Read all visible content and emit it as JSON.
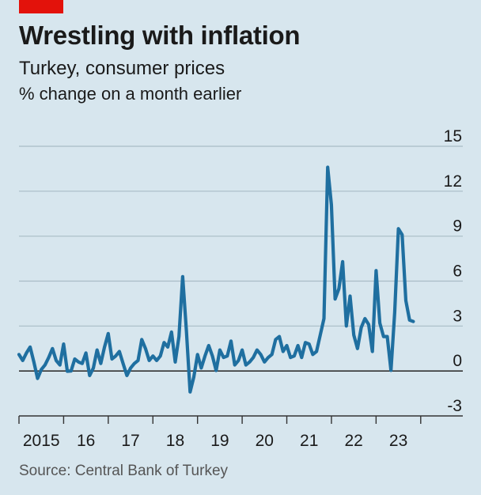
{
  "header": {
    "title": "Wrestling with inflation",
    "subtitle": "Turkey, consumer prices",
    "unit": "% change on a month earlier"
  },
  "footer": {
    "source": "Source: Central Bank of Turkey"
  },
  "colors": {
    "background": "#d7e6ee",
    "line": "#1f6fa0",
    "accent": "#e3120b",
    "grid": "#a9bcc6"
  },
  "chart_data": {
    "type": "line",
    "title": "Wrestling with inflation",
    "subtitle": "Turkey, consumer prices",
    "ylabel": "% change on a month earlier",
    "ylim": [
      -3,
      15
    ],
    "y_ticks": [
      15,
      12,
      9,
      6,
      3,
      0,
      -3
    ],
    "y_tick_labels": [
      "15",
      "12",
      "9",
      "6",
      "3",
      "0",
      "-3"
    ],
    "x_tick_labels": [
      "2015",
      "16",
      "17",
      "18",
      "19",
      "20",
      "21",
      "22",
      "23"
    ],
    "x_tick_years": [
      2015,
      2016,
      2017,
      2018,
      2019,
      2020,
      2021,
      2022,
      2023
    ],
    "x_start": "2015-01",
    "x_range_years": [
      2015,
      2024.5
    ],
    "grid": true,
    "series": [
      {
        "values": [
          1.1,
          0.7,
          1.2,
          1.6,
          0.6,
          -0.5,
          0.1,
          0.4,
          0.9,
          1.5,
          0.7,
          0.4,
          1.8,
          -0.02,
          0.0,
          0.8,
          0.6,
          0.5,
          1.2,
          -0.3,
          0.2,
          1.4,
          0.5,
          1.6,
          2.5,
          0.8,
          1.0,
          1.3,
          0.5,
          -0.3,
          0.2,
          0.5,
          0.7,
          2.1,
          1.5,
          0.7,
          1.0,
          0.7,
          1.0,
          1.9,
          1.6,
          2.6,
          0.6,
          2.3,
          6.3,
          2.7,
          -1.4,
          -0.4,
          1.1,
          0.2,
          1.0,
          1.7,
          1.0,
          0.03,
          1.4,
          0.9,
          1.0,
          2.0,
          0.4,
          0.7,
          1.4,
          0.4,
          0.6,
          0.9,
          1.4,
          1.1,
          0.6,
          0.9,
          1.1,
          2.1,
          2.3,
          1.3,
          1.7,
          0.9,
          1.0,
          1.7,
          0.9,
          1.9,
          1.8,
          1.1,
          1.3,
          2.4,
          3.5,
          13.6,
          11.1,
          4.8,
          5.5,
          7.3,
          3.0,
          5.0,
          2.4,
          1.5,
          2.9,
          3.5,
          3.1,
          1.3,
          6.7,
          3.2,
          2.3,
          2.3,
          0.04,
          3.9,
          9.5,
          9.1,
          4.7,
          3.4,
          3.3
        ]
      }
    ]
  }
}
